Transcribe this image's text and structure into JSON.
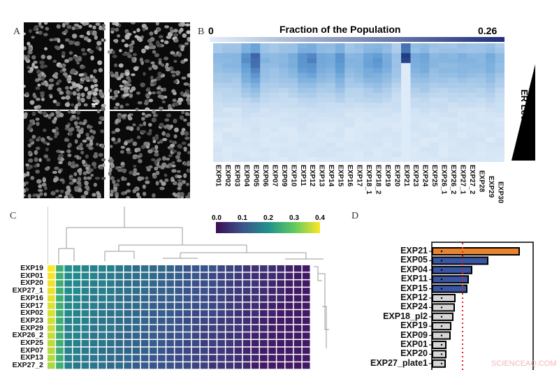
{
  "panels": {
    "a": "A",
    "b": "B",
    "c": "C",
    "d": "D"
  },
  "panel_b": {
    "colorbar_title": "Fraction of the Population",
    "colorbar_min": "0",
    "colorbar_max": "0.26",
    "colorbar_colors": [
      "#e3eef9",
      "#1f2f7a"
    ],
    "y_axis_label": "ER Level",
    "columns": [
      "EXP01",
      "EXP02",
      "EXP03",
      "EXP04",
      "EXP05",
      "EXP06",
      "EXP07",
      "EXP09",
      "EXP10",
      "EXP11",
      "EXP12",
      "EXP13",
      "EXP14",
      "EXP15",
      "EXP16",
      "EXP17",
      "EXP18_1",
      "EXP18_2",
      "EXP19",
      "EXP20",
      "EXP21",
      "EXP23",
      "EXP24",
      "EXP25",
      "EXP26_1",
      "EXP26_2",
      "EXP27_1",
      "EXP27_2",
      "EXP28",
      "EXP29",
      "EXP30"
    ],
    "column_peaks": [
      0.09,
      0.1,
      0.1,
      0.16,
      0.2,
      0.1,
      0.09,
      0.1,
      0.12,
      0.16,
      0.17,
      0.13,
      0.12,
      0.16,
      0.1,
      0.11,
      0.14,
      0.15,
      0.12,
      0.08,
      0.26,
      0.12,
      0.13,
      0.1,
      0.1,
      0.1,
      0.11,
      0.1,
      0.1,
      0.12,
      0.09
    ]
  },
  "panel_c": {
    "colorbar_ticks": [
      "0.0",
      "0.1",
      "0.2",
      "0.3",
      "0.4"
    ],
    "colorbar_range": [
      0,
      0.4
    ],
    "rows": [
      "EXP19",
      "EXP01",
      "EXP20",
      "EXP27_1",
      "EXP16",
      "EXP17",
      "EXP02",
      "EXP23",
      "EXP29",
      "EXP26_2",
      "EXP25",
      "EXP07",
      "EXP13",
      "EXP27_2"
    ],
    "n_columns": 31
  },
  "panel_d": {
    "chart_data": {
      "type": "bar",
      "orientation": "horizontal",
      "categories": [
        "EXP21",
        "EXP05",
        "EXP04",
        "EXP11",
        "EXP15",
        "EXP12",
        "EXP24",
        "EXP18_pl2",
        "EXP19",
        "EXP09",
        "EXP01",
        "EXP20",
        "EXP27_plate1"
      ],
      "values": [
        124,
        79,
        56,
        51,
        49,
        32,
        31,
        29,
        26,
        25,
        19,
        19,
        18
      ],
      "colors": [
        "#e8822e",
        "#3a55a4",
        "#3a55a4",
        "#3a55a4",
        "#3a55a4",
        "#d6d6d6",
        "#d6d6d6",
        "#d6d6d6",
        "#d6d6d6",
        "#d6d6d6",
        "#d6d6d6",
        "#d6d6d6",
        "#d6d6d6"
      ],
      "threshold": 43,
      "xlim": [
        0,
        143
      ],
      "threshold_color": "#e02020"
    }
  },
  "watermark": "SCIENCEAQ.COM"
}
